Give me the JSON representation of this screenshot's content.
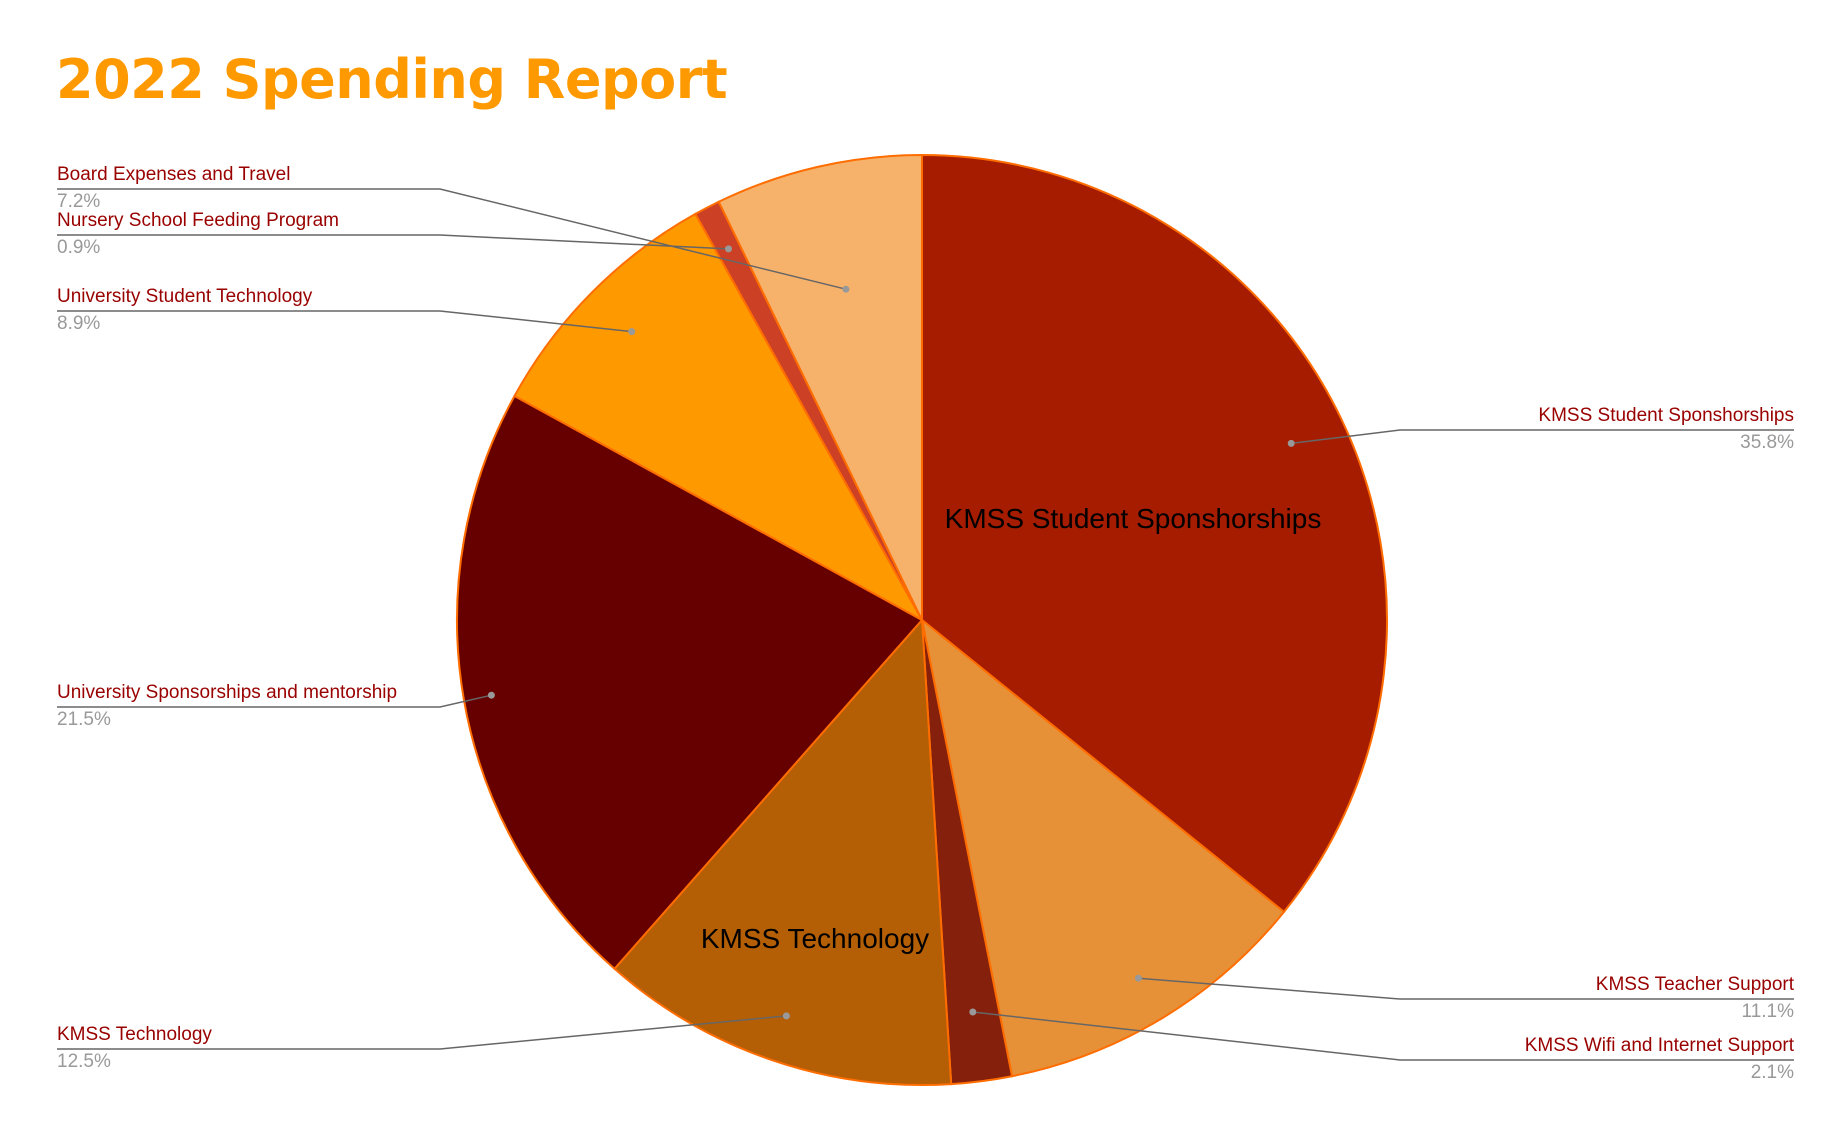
{
  "chart_data": {
    "type": "pie",
    "title": "2022 Spending Report",
    "slices": [
      {
        "name": "KMSS Student Sponshorships",
        "value": 35.8,
        "label": "35.8%",
        "color": "#a61c00",
        "side": "right",
        "inner_label": "KMSS Student Sponshorships"
      },
      {
        "name": "KMSS Teacher Support",
        "value": 11.1,
        "label": "11.1%",
        "color": "#e69138",
        "side": "right",
        "inner_label": ""
      },
      {
        "name": "KMSS Wifi and Internet Support",
        "value": 2.1,
        "label": "2.1%",
        "color": "#85200c",
        "side": "right",
        "inner_label": ""
      },
      {
        "name": "KMSS Technology",
        "value": 12.5,
        "label": "12.5%",
        "color": "#b45f06",
        "side": "left",
        "inner_label": "KMSS Technology"
      },
      {
        "name": "University Sponsorships and mentorship",
        "value": 21.5,
        "label": "21.5%",
        "color": "#660000",
        "side": "left",
        "inner_label": ""
      },
      {
        "name": "University Student Technology",
        "value": 8.9,
        "label": "8.9%",
        "color": "#ff9900",
        "side": "left",
        "inner_label": ""
      },
      {
        "name": "Nursery School Feeding Program",
        "value": 0.9,
        "label": "0.9%",
        "color": "#cc4125",
        "side": "left",
        "inner_label": ""
      },
      {
        "name": "Board Expenses and Travel",
        "value": 7.2,
        "label": "7.2%",
        "color": "#f6b26b",
        "side": "left",
        "inner_label": ""
      }
    ],
    "slice_border_color": "#ff6d01",
    "leader_line_color": "#666666",
    "legend": "callout-labels"
  }
}
